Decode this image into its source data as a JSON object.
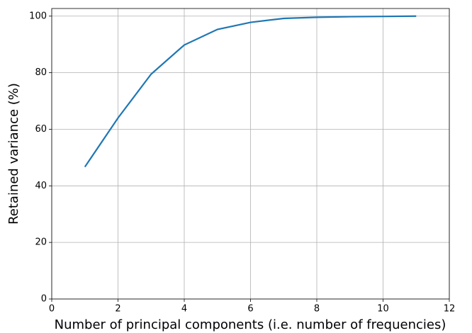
{
  "chart_data": {
    "type": "line",
    "x_label": "Number of principal components (i.e. number of frequencies)",
    "y_label": "Retained variance (%)",
    "x": [
      1,
      2,
      3,
      4,
      5,
      6,
      7,
      8,
      9,
      10,
      11
    ],
    "series": [
      {
        "color": "#1f77b4",
        "values": [
          46.7,
          64,
          79.5,
          89.8,
          95.3,
          97.8,
          99.2,
          99.6,
          99.8,
          99.9,
          100
        ]
      }
    ],
    "xlim": [
      0,
      12
    ],
    "xticks": [
      0,
      2,
      4,
      6,
      8,
      10,
      12
    ],
    "ylim": [
      0,
      102.7
    ],
    "yticks": [
      0,
      20,
      40,
      60,
      80,
      100
    ],
    "grid": true
  }
}
